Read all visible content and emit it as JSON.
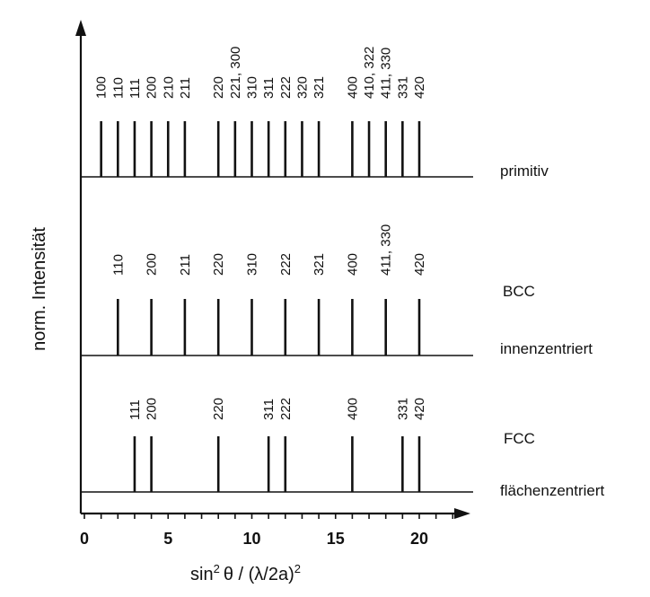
{
  "chart_data": {
    "type": "bar",
    "xlabel": "sin² θ / (λ/2a)²",
    "xlabel_parts": {
      "a": "sin",
      "b": "2",
      "c": "θ / (λ/2a)",
      "d": "2"
    },
    "ylabel": "norm. Intensität",
    "xlim": [
      0,
      23
    ],
    "x_ticks": [
      0,
      5,
      10,
      15,
      20
    ],
    "grid": false,
    "panels": [
      {
        "name": "primitiv",
        "labels": [
          "primitiv"
        ],
        "peaks": [
          {
            "x": 1,
            "hkl": "100"
          },
          {
            "x": 2,
            "hkl": "110"
          },
          {
            "x": 3,
            "hkl": "111"
          },
          {
            "x": 4,
            "hkl": "200"
          },
          {
            "x": 5,
            "hkl": "210"
          },
          {
            "x": 6,
            "hkl": "211"
          },
          {
            "x": 8,
            "hkl": "220"
          },
          {
            "x": 9,
            "hkl": "221, 300"
          },
          {
            "x": 10,
            "hkl": "310"
          },
          {
            "x": 11,
            "hkl": "311"
          },
          {
            "x": 12,
            "hkl": "222"
          },
          {
            "x": 13,
            "hkl": "320"
          },
          {
            "x": 14,
            "hkl": "321"
          },
          {
            "x": 16,
            "hkl": "400"
          },
          {
            "x": 17,
            "hkl": "410, 322"
          },
          {
            "x": 18,
            "hkl": "411, 330"
          },
          {
            "x": 19,
            "hkl": "331"
          },
          {
            "x": 20,
            "hkl": "420"
          }
        ]
      },
      {
        "name": "innenzentriert",
        "labels": [
          "BCC",
          "innenzentriert"
        ],
        "peaks": [
          {
            "x": 2,
            "hkl": "110"
          },
          {
            "x": 4,
            "hkl": "200"
          },
          {
            "x": 6,
            "hkl": "211"
          },
          {
            "x": 8,
            "hkl": "220"
          },
          {
            "x": 10,
            "hkl": "310"
          },
          {
            "x": 12,
            "hkl": "222"
          },
          {
            "x": 14,
            "hkl": "321"
          },
          {
            "x": 16,
            "hkl": "400"
          },
          {
            "x": 18,
            "hkl": "411, 330"
          },
          {
            "x": 20,
            "hkl": "420"
          }
        ]
      },
      {
        "name": "flächenzentriert",
        "labels": [
          "FCC",
          "flächenzentriert"
        ],
        "peaks": [
          {
            "x": 3,
            "hkl": "111"
          },
          {
            "x": 4,
            "hkl": "200"
          },
          {
            "x": 8,
            "hkl": "220"
          },
          {
            "x": 11,
            "hkl": "311"
          },
          {
            "x": 12,
            "hkl": "222"
          },
          {
            "x": 16,
            "hkl": "400"
          },
          {
            "x": 19,
            "hkl": "331"
          },
          {
            "x": 20,
            "hkl": "420"
          }
        ]
      }
    ]
  }
}
